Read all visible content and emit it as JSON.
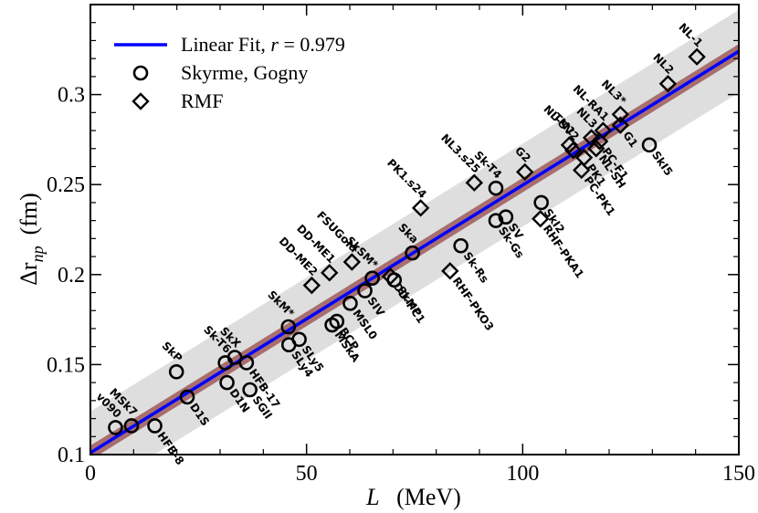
{
  "chart_data": {
    "type": "scatter",
    "xlabel_symbol": "L",
    "xlabel_unit": "(MeV)",
    "ylabel_symbol": "Δr",
    "ylabel_sub": "np",
    "ylabel_unit": "(fm)",
    "xlim": [
      0,
      150
    ],
    "ylim": [
      0.1,
      0.35
    ],
    "xticks": [
      0,
      50,
      100,
      150
    ],
    "xtick_labels": [
      "0",
      "50",
      "100",
      "150"
    ],
    "yticks": [
      0.1,
      0.15,
      0.2,
      0.25,
      0.3
    ],
    "ytick_labels": [
      "0.1",
      "0.15",
      "0.2",
      "0.25",
      "0.3"
    ],
    "fit": {
      "intercept": 0.101,
      "slope": 0.001487,
      "inner_band": 0.004,
      "outer_band": 0.023,
      "color": "#0000ff",
      "inner_band_color": "#a86e6e",
      "outer_band_color": "#dedede"
    },
    "legend": {
      "fit_label_prefix": "Linear Fit, ",
      "fit_label_r": "r",
      "fit_label_value": " = 0.979",
      "skyrme_label": "Skyrme, Gogny",
      "rmf_label": "RMF"
    },
    "series": [
      {
        "name": "Skyrme, Gogny",
        "marker": "circle",
        "points": [
          {
            "x": 5.8,
            "y": 0.115,
            "label": "v090"
          },
          {
            "x": 9.5,
            "y": 0.116,
            "label": "MSk7"
          },
          {
            "x": 14.9,
            "y": 0.116,
            "label": "HFB-8"
          },
          {
            "x": 22.4,
            "y": 0.132,
            "label": "D1S"
          },
          {
            "x": 19.9,
            "y": 0.146,
            "label": "SkP"
          },
          {
            "x": 31.6,
            "y": 0.14,
            "label": "D1N"
          },
          {
            "x": 36.9,
            "y": 0.136,
            "label": "SGII"
          },
          {
            "x": 31.2,
            "y": 0.151,
            "label": "Sk-T6"
          },
          {
            "x": 33.4,
            "y": 0.154,
            "label": "SkX"
          },
          {
            "x": 36.1,
            "y": 0.151,
            "label": "HFB-17"
          },
          {
            "x": 45.8,
            "y": 0.171,
            "label": "SkM*"
          },
          {
            "x": 48.3,
            "y": 0.164,
            "label": "SLy5"
          },
          {
            "x": 45.9,
            "y": 0.161,
            "label": "SLy4"
          },
          {
            "x": 55.9,
            "y": 0.172,
            "label": "MSkA"
          },
          {
            "x": 57.0,
            "y": 0.174,
            "label": "BCP"
          },
          {
            "x": 60.1,
            "y": 0.184,
            "label": "MSL0"
          },
          {
            "x": 63.5,
            "y": 0.191,
            "label": "SIV"
          },
          {
            "x": 65.2,
            "y": 0.198,
            "label": "SkSM*"
          },
          {
            "x": 70.3,
            "y": 0.197,
            "label": "SkMP"
          },
          {
            "x": 74.5,
            "y": 0.212,
            "label": "Ska"
          },
          {
            "x": 85.7,
            "y": 0.216,
            "label": "Sk-Rs"
          },
          {
            "x": 93.8,
            "y": 0.248,
            "label": "Sk-T4"
          },
          {
            "x": 93.8,
            "y": 0.23,
            "label": "Sk-Gs"
          },
          {
            "x": 96.1,
            "y": 0.232,
            "label": "SV"
          },
          {
            "x": 104.3,
            "y": 0.24,
            "label": "SkI2"
          },
          {
            "x": 129.3,
            "y": 0.272,
            "label": "SkI5"
          }
        ]
      },
      {
        "name": "RMF",
        "marker": "diamond",
        "points": [
          {
            "x": 51.2,
            "y": 0.194,
            "label": "DD-ME2"
          },
          {
            "x": 55.3,
            "y": 0.201,
            "label": "DD-ME1"
          },
          {
            "x": 60.5,
            "y": 0.207,
            "label": "FSUGold"
          },
          {
            "x": 69.4,
            "y": 0.199,
            "label": "DD-PC1"
          },
          {
            "x": 76.4,
            "y": 0.237,
            "label": "PK1.s24"
          },
          {
            "x": 83.2,
            "y": 0.202,
            "label": "RHF-PKO3"
          },
          {
            "x": 88.8,
            "y": 0.251,
            "label": "NL3.s25"
          },
          {
            "x": 100.5,
            "y": 0.257,
            "label": "G2"
          },
          {
            "x": 104.1,
            "y": 0.231,
            "label": "RHF-PKA1"
          },
          {
            "x": 110.8,
            "y": 0.272,
            "label": "TM1"
          },
          {
            "x": 111.7,
            "y": 0.269,
            "label": "NL-SV2"
          },
          {
            "x": 114.2,
            "y": 0.265,
            "label": "PK1"
          },
          {
            "x": 113.6,
            "y": 0.258,
            "label": "PC-PK1"
          },
          {
            "x": 115.9,
            "y": 0.276,
            "label": "NL3"
          },
          {
            "x": 117.0,
            "y": 0.27,
            "label": "NL-SH"
          },
          {
            "x": 117.8,
            "y": 0.274,
            "label": "PC-F1"
          },
          {
            "x": 118.6,
            "y": 0.28,
            "label": "NL-RA1"
          },
          {
            "x": 122.6,
            "y": 0.283,
            "label": "G1"
          },
          {
            "x": 122.6,
            "y": 0.289,
            "label": "NL3*"
          },
          {
            "x": 133.6,
            "y": 0.306,
            "label": "NL2"
          },
          {
            "x": 140.3,
            "y": 0.321,
            "label": "NL-1"
          }
        ]
      }
    ]
  }
}
